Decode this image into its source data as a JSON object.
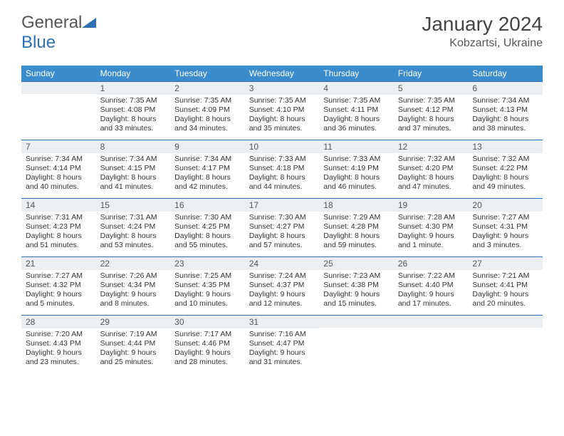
{
  "brand": {
    "part1": "General",
    "part2": "Blue"
  },
  "title": "January 2024",
  "location": "Kobzartsi, Ukraine",
  "colors": {
    "header_bg": "#3b8ccc",
    "day_border": "#2e6fb5",
    "daynum_bg": "#eceff1",
    "text": "#333333",
    "page_bg": "#ffffff"
  },
  "weekdays": [
    "Sunday",
    "Monday",
    "Tuesday",
    "Wednesday",
    "Thursday",
    "Friday",
    "Saturday"
  ],
  "weeks": [
    [
      {
        "day": "",
        "sunrise": "",
        "sunset": "",
        "daylight": ""
      },
      {
        "day": "1",
        "sunrise": "Sunrise: 7:35 AM",
        "sunset": "Sunset: 4:08 PM",
        "daylight": "Daylight: 8 hours and 33 minutes."
      },
      {
        "day": "2",
        "sunrise": "Sunrise: 7:35 AM",
        "sunset": "Sunset: 4:09 PM",
        "daylight": "Daylight: 8 hours and 34 minutes."
      },
      {
        "day": "3",
        "sunrise": "Sunrise: 7:35 AM",
        "sunset": "Sunset: 4:10 PM",
        "daylight": "Daylight: 8 hours and 35 minutes."
      },
      {
        "day": "4",
        "sunrise": "Sunrise: 7:35 AM",
        "sunset": "Sunset: 4:11 PM",
        "daylight": "Daylight: 8 hours and 36 minutes."
      },
      {
        "day": "5",
        "sunrise": "Sunrise: 7:35 AM",
        "sunset": "Sunset: 4:12 PM",
        "daylight": "Daylight: 8 hours and 37 minutes."
      },
      {
        "day": "6",
        "sunrise": "Sunrise: 7:34 AM",
        "sunset": "Sunset: 4:13 PM",
        "daylight": "Daylight: 8 hours and 38 minutes."
      }
    ],
    [
      {
        "day": "7",
        "sunrise": "Sunrise: 7:34 AM",
        "sunset": "Sunset: 4:14 PM",
        "daylight": "Daylight: 8 hours and 40 minutes."
      },
      {
        "day": "8",
        "sunrise": "Sunrise: 7:34 AM",
        "sunset": "Sunset: 4:15 PM",
        "daylight": "Daylight: 8 hours and 41 minutes."
      },
      {
        "day": "9",
        "sunrise": "Sunrise: 7:34 AM",
        "sunset": "Sunset: 4:17 PM",
        "daylight": "Daylight: 8 hours and 42 minutes."
      },
      {
        "day": "10",
        "sunrise": "Sunrise: 7:33 AM",
        "sunset": "Sunset: 4:18 PM",
        "daylight": "Daylight: 8 hours and 44 minutes."
      },
      {
        "day": "11",
        "sunrise": "Sunrise: 7:33 AM",
        "sunset": "Sunset: 4:19 PM",
        "daylight": "Daylight: 8 hours and 46 minutes."
      },
      {
        "day": "12",
        "sunrise": "Sunrise: 7:32 AM",
        "sunset": "Sunset: 4:20 PM",
        "daylight": "Daylight: 8 hours and 47 minutes."
      },
      {
        "day": "13",
        "sunrise": "Sunrise: 7:32 AM",
        "sunset": "Sunset: 4:22 PM",
        "daylight": "Daylight: 8 hours and 49 minutes."
      }
    ],
    [
      {
        "day": "14",
        "sunrise": "Sunrise: 7:31 AM",
        "sunset": "Sunset: 4:23 PM",
        "daylight": "Daylight: 8 hours and 51 minutes."
      },
      {
        "day": "15",
        "sunrise": "Sunrise: 7:31 AM",
        "sunset": "Sunset: 4:24 PM",
        "daylight": "Daylight: 8 hours and 53 minutes."
      },
      {
        "day": "16",
        "sunrise": "Sunrise: 7:30 AM",
        "sunset": "Sunset: 4:25 PM",
        "daylight": "Daylight: 8 hours and 55 minutes."
      },
      {
        "day": "17",
        "sunrise": "Sunrise: 7:30 AM",
        "sunset": "Sunset: 4:27 PM",
        "daylight": "Daylight: 8 hours and 57 minutes."
      },
      {
        "day": "18",
        "sunrise": "Sunrise: 7:29 AM",
        "sunset": "Sunset: 4:28 PM",
        "daylight": "Daylight: 8 hours and 59 minutes."
      },
      {
        "day": "19",
        "sunrise": "Sunrise: 7:28 AM",
        "sunset": "Sunset: 4:30 PM",
        "daylight": "Daylight: 9 hours and 1 minute."
      },
      {
        "day": "20",
        "sunrise": "Sunrise: 7:27 AM",
        "sunset": "Sunset: 4:31 PM",
        "daylight": "Daylight: 9 hours and 3 minutes."
      }
    ],
    [
      {
        "day": "21",
        "sunrise": "Sunrise: 7:27 AM",
        "sunset": "Sunset: 4:32 PM",
        "daylight": "Daylight: 9 hours and 5 minutes."
      },
      {
        "day": "22",
        "sunrise": "Sunrise: 7:26 AM",
        "sunset": "Sunset: 4:34 PM",
        "daylight": "Daylight: 9 hours and 8 minutes."
      },
      {
        "day": "23",
        "sunrise": "Sunrise: 7:25 AM",
        "sunset": "Sunset: 4:35 PM",
        "daylight": "Daylight: 9 hours and 10 minutes."
      },
      {
        "day": "24",
        "sunrise": "Sunrise: 7:24 AM",
        "sunset": "Sunset: 4:37 PM",
        "daylight": "Daylight: 9 hours and 12 minutes."
      },
      {
        "day": "25",
        "sunrise": "Sunrise: 7:23 AM",
        "sunset": "Sunset: 4:38 PM",
        "daylight": "Daylight: 9 hours and 15 minutes."
      },
      {
        "day": "26",
        "sunrise": "Sunrise: 7:22 AM",
        "sunset": "Sunset: 4:40 PM",
        "daylight": "Daylight: 9 hours and 17 minutes."
      },
      {
        "day": "27",
        "sunrise": "Sunrise: 7:21 AM",
        "sunset": "Sunset: 4:41 PM",
        "daylight": "Daylight: 9 hours and 20 minutes."
      }
    ],
    [
      {
        "day": "28",
        "sunrise": "Sunrise: 7:20 AM",
        "sunset": "Sunset: 4:43 PM",
        "daylight": "Daylight: 9 hours and 23 minutes."
      },
      {
        "day": "29",
        "sunrise": "Sunrise: 7:19 AM",
        "sunset": "Sunset: 4:44 PM",
        "daylight": "Daylight: 9 hours and 25 minutes."
      },
      {
        "day": "30",
        "sunrise": "Sunrise: 7:17 AM",
        "sunset": "Sunset: 4:46 PM",
        "daylight": "Daylight: 9 hours and 28 minutes."
      },
      {
        "day": "31",
        "sunrise": "Sunrise: 7:16 AM",
        "sunset": "Sunset: 4:47 PM",
        "daylight": "Daylight: 9 hours and 31 minutes."
      },
      {
        "day": "",
        "sunrise": "",
        "sunset": "",
        "daylight": ""
      },
      {
        "day": "",
        "sunrise": "",
        "sunset": "",
        "daylight": ""
      },
      {
        "day": "",
        "sunrise": "",
        "sunset": "",
        "daylight": ""
      }
    ]
  ]
}
